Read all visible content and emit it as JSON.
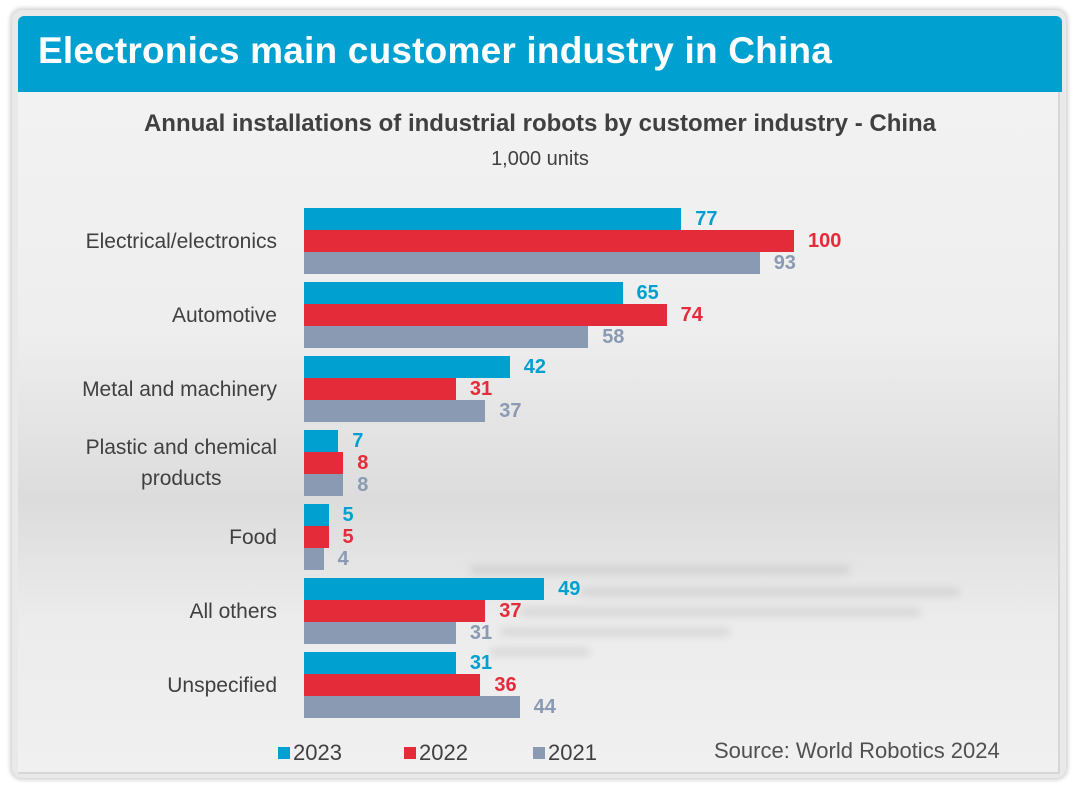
{
  "banner": {
    "title": "Electronics main customer industry in China"
  },
  "colors": {
    "banner": "#00a0d0",
    "s2023": "#00a0d0",
    "s2022": "#e32b3a",
    "s2021": "#8a9ab2"
  },
  "source": "Source: World Robotics 2024",
  "chart_data": {
    "type": "bar",
    "orientation": "horizontal",
    "title": "Annual installations of industrial robots by customer industry  - China",
    "subtitle": "1,000 units",
    "xlabel": "",
    "ylabel": "",
    "xlim": [
      0,
      100
    ],
    "grid": false,
    "legend_position": "bottom-left",
    "categories": [
      "Electrical/electronics",
      "Automotive",
      "Metal and machinery",
      "Plastic and chemical products",
      "Food",
      "All others",
      "Unspecified"
    ],
    "category_display": [
      [
        "Electrical/electronics"
      ],
      [
        "Automotive"
      ],
      [
        "Metal and machinery"
      ],
      [
        "Plastic and chemical",
        "products"
      ],
      [
        "Food"
      ],
      [
        "All others"
      ],
      [
        "Unspecified"
      ]
    ],
    "series": [
      {
        "name": "2023",
        "color": "#00a0d0",
        "values": [
          77,
          65,
          42,
          7,
          5,
          49,
          31
        ]
      },
      {
        "name": "2022",
        "color": "#e32b3a",
        "values": [
          100,
          74,
          31,
          8,
          5,
          37,
          36
        ]
      },
      {
        "name": "2021",
        "color": "#8a9ab2",
        "values": [
          93,
          58,
          37,
          8,
          4,
          31,
          44
        ]
      }
    ]
  }
}
